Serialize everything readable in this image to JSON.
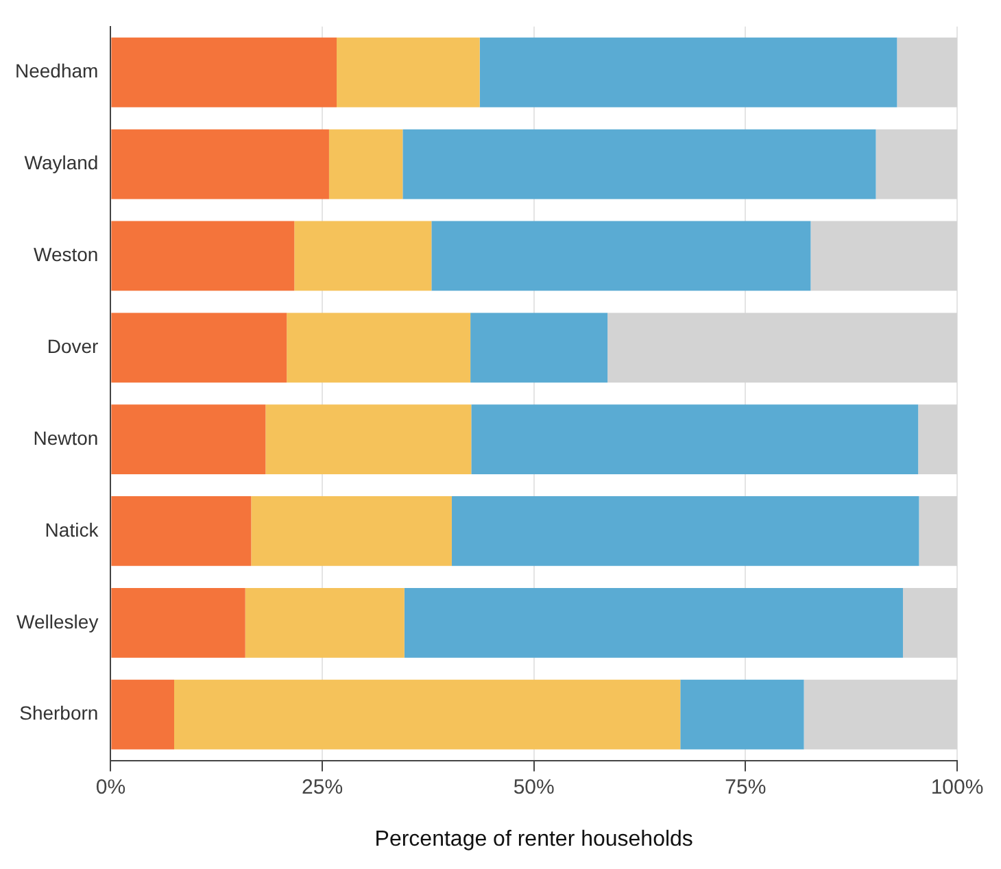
{
  "chart_data": {
    "type": "bar",
    "orientation": "horizontal",
    "stacked": true,
    "xlabel": "Percentage of renter households",
    "categories": [
      "Needham",
      "Wayland",
      "Weston",
      "Dover",
      "Newton",
      "Natick",
      "Wellesley",
      "Sherborn"
    ],
    "series": [
      {
        "color": "#f4743b",
        "values": [
          26.7,
          25.8,
          21.7,
          20.8,
          18.3,
          16.6,
          15.9,
          7.5
        ]
      },
      {
        "color": "#f5c25a",
        "values": [
          16.9,
          8.7,
          16.2,
          21.7,
          24.3,
          23.7,
          18.8,
          59.8
        ]
      },
      {
        "color": "#5aabd3",
        "values": [
          49.3,
          55.9,
          44.8,
          16.2,
          52.8,
          55.2,
          58.9,
          14.6
        ]
      },
      {
        "color": "#d3d3d3",
        "values": [
          7.1,
          9.6,
          17.3,
          41.3,
          4.6,
          4.5,
          6.4,
          18.1
        ]
      }
    ],
    "xlim": [
      0,
      100
    ],
    "xticks": [
      {
        "value": 0,
        "label": "0%"
      },
      {
        "value": 25,
        "label": "25%"
      },
      {
        "value": 50,
        "label": "50%"
      },
      {
        "value": 75,
        "label": "75%"
      },
      {
        "value": 100,
        "label": "100%"
      }
    ],
    "grid": "x",
    "legend": false
  }
}
